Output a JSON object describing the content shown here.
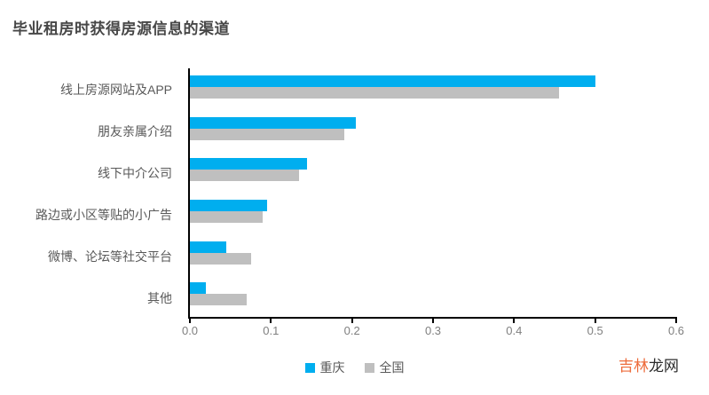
{
  "chart_data": {
    "type": "bar",
    "orientation": "horizontal",
    "title": "毕业租房时获得房源信息的渠道",
    "categories": [
      "线上房源网站及APP",
      "朋友亲属介绍",
      "线下中介公司",
      "路边或小区等贴的小广告",
      "微博、论坛等社交平台",
      "其他"
    ],
    "series": [
      {
        "name": "重庆",
        "color": "#00AEEF",
        "values": [
          0.5,
          0.205,
          0.145,
          0.095,
          0.045,
          0.02
        ]
      },
      {
        "name": "全国",
        "color": "#BFBFBF",
        "values": [
          0.455,
          0.19,
          0.135,
          0.09,
          0.075,
          0.07
        ]
      }
    ],
    "xlabel": "",
    "ylabel": "",
    "xlim": [
      0,
      0.6
    ],
    "x_ticks": [
      "0.0",
      "0.1",
      "0.2",
      "0.3",
      "0.4",
      "0.5",
      "0.6"
    ],
    "grid": false,
    "legend_position": "bottom-center"
  },
  "colors": {
    "axis": "#000000",
    "title_text": "#474747",
    "category_label_text": "#595959",
    "tick_label_text": "#7f7f7f",
    "background": "#ffffff"
  },
  "watermark": {
    "part1": "吉林",
    "part2": "龙网",
    "part1_color": "#ED6C3C",
    "part2_color": "#2B2B2B"
  }
}
